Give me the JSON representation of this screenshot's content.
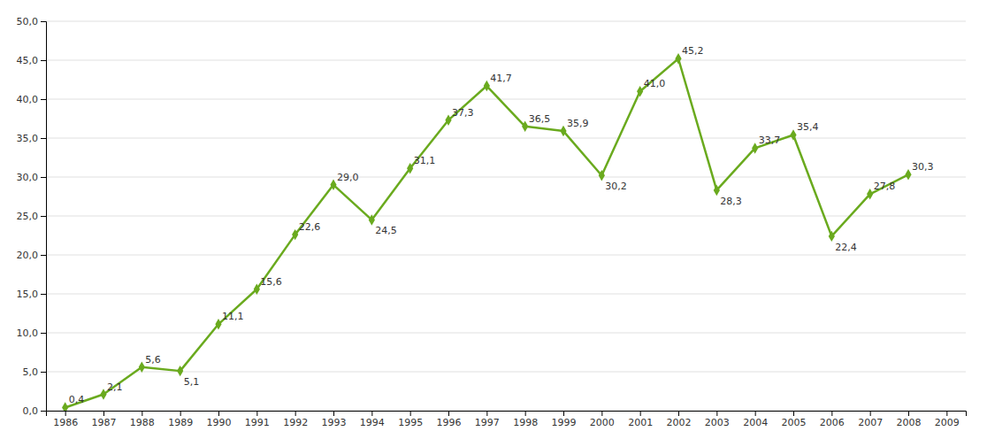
{
  "chart_data": {
    "type": "line",
    "x": [
      1986,
      1987,
      1988,
      1989,
      1990,
      1991,
      1992,
      1993,
      1994,
      1995,
      1996,
      1997,
      1998,
      1999,
      2000,
      2001,
      2002,
      2003,
      2004,
      2005,
      2006,
      2007,
      2008
    ],
    "values": [
      0.4,
      2.1,
      5.6,
      5.1,
      11.1,
      15.6,
      22.6,
      29.0,
      24.5,
      31.1,
      37.3,
      41.7,
      36.5,
      35.9,
      30.2,
      41.0,
      45.2,
      28.3,
      33.7,
      35.4,
      22.4,
      27.8,
      30.3
    ],
    "value_labels": [
      "0,4",
      "2,1",
      "5,6",
      "5,1",
      "11,1",
      "15,6",
      "22,6",
      "29,0",
      "24,5",
      "31,1",
      "37,3",
      "41,7",
      "36,5",
      "35,9",
      "30,2",
      "41,0",
      "45,2",
      "28,3",
      "33,7",
      "35,4",
      "22,4",
      "27,8",
      "30,3"
    ],
    "data_labels": true,
    "color": "#6aaa1e",
    "marker": "diamond",
    "grid": true,
    "xlim": [
      1985.5,
      2009.5
    ],
    "xticks": [
      1986,
      1987,
      1988,
      1989,
      1990,
      1991,
      1992,
      1993,
      1994,
      1995,
      1996,
      1997,
      1998,
      1999,
      2000,
      2001,
      2002,
      2003,
      2004,
      2005,
      2006,
      2007,
      2008,
      2009
    ],
    "ylim": [
      0,
      50
    ],
    "yticks": [
      {
        "value": 0.0,
        "label": "0,0"
      },
      {
        "value": 5.0,
        "label": "5,0"
      },
      {
        "value": 10.0,
        "label": "10,0"
      },
      {
        "value": 15.0,
        "label": "15,0"
      },
      {
        "value": 20.0,
        "label": "20,0"
      },
      {
        "value": 25.0,
        "label": "25,0"
      },
      {
        "value": 30.0,
        "label": "30,0"
      },
      {
        "value": 35.0,
        "label": "35,0"
      },
      {
        "value": 40.0,
        "label": "40,0"
      },
      {
        "value": 45.0,
        "label": "45,0"
      },
      {
        "value": 50.0,
        "label": "50,0"
      }
    ]
  }
}
